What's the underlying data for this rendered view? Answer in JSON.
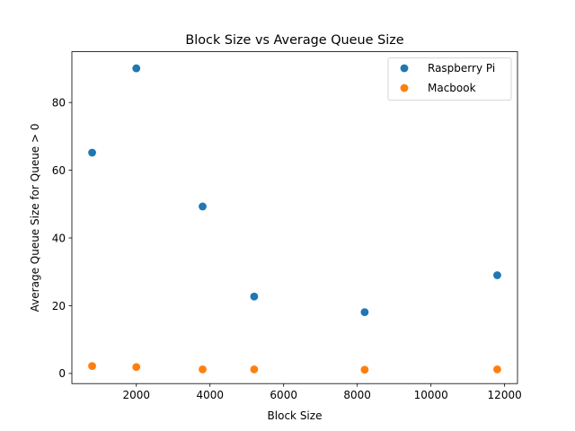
{
  "chart_data": {
    "type": "scatter",
    "title": "Block Size vs Average Queue Size",
    "xlabel": "Block Size",
    "ylabel": "Average Queue Size for Queue > 0",
    "xlim": [
      250,
      12350
    ],
    "ylim": [
      -3.0,
      95.0
    ],
    "xticks": [
      2000,
      4000,
      6000,
      8000,
      10000,
      12000
    ],
    "yticks": [
      0,
      20,
      40,
      60,
      80
    ],
    "grid": false,
    "legend_position": "top-right",
    "series": [
      {
        "name": "Raspberry Pi",
        "color": "#1f77b4",
        "points": [
          {
            "x": 800,
            "y": 65.2
          },
          {
            "x": 2000,
            "y": 90.1
          },
          {
            "x": 3800,
            "y": 49.3
          },
          {
            "x": 5200,
            "y": 22.7
          },
          {
            "x": 8200,
            "y": 18.1
          },
          {
            "x": 11800,
            "y": 29.0
          }
        ]
      },
      {
        "name": "Macbook",
        "color": "#ff7f0e",
        "points": [
          {
            "x": 800,
            "y": 2.2
          },
          {
            "x": 2000,
            "y": 1.9
          },
          {
            "x": 3800,
            "y": 1.2
          },
          {
            "x": 5200,
            "y": 1.2
          },
          {
            "x": 8200,
            "y": 1.1
          },
          {
            "x": 11800,
            "y": 1.2
          }
        ]
      }
    ]
  }
}
